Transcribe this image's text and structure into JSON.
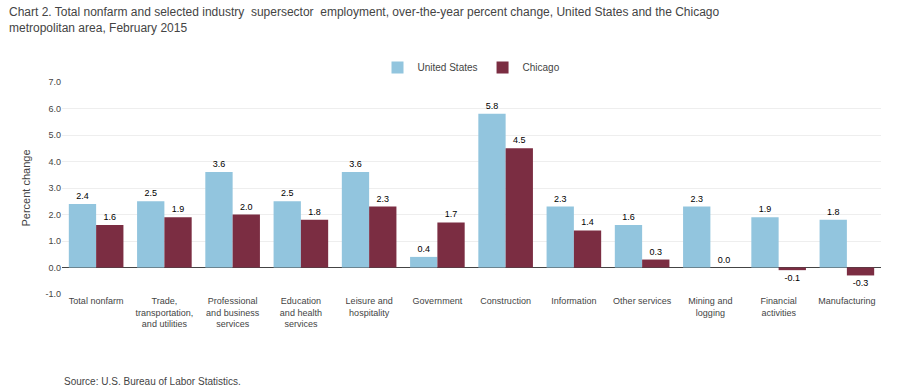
{
  "chart_data": {
    "type": "bar",
    "title": "Chart 2. Total nonfarm and selected industry  supersector  employment, over-the-year percent change, United States and the Chicago\nmetropolitan area, February 2015",
    "ylabel": "Percent change",
    "source": "Source: U.S. Bureau of Labor Statistics.",
    "categories": [
      "Total nonfarm",
      "Trade,\ntransportation,\nand utilities",
      "Professional\nand business\nservices",
      "Education\nand health\nservices",
      "Leisure and\nhospitality",
      "Government",
      "Construction",
      "Information",
      "Other services",
      "Mining and\nlogging",
      "Financial\nactivities",
      "Manufacturing"
    ],
    "series": [
      {
        "name": "United States",
        "color": "#92c5de",
        "values": [
          2.4,
          2.5,
          3.6,
          2.5,
          3.6,
          0.4,
          5.8,
          2.3,
          1.6,
          2.3,
          1.9,
          1.8
        ],
        "value_labels": [
          "2.4",
          "2.5",
          "3.6",
          "2.5",
          "3.6",
          "0.4",
          "5.8",
          "2.3",
          "1.6",
          "2.3",
          "1.9",
          "1.8"
        ]
      },
      {
        "name": "Chicago",
        "color": "#7b2d42",
        "values": [
          1.6,
          1.9,
          2.0,
          1.8,
          2.3,
          1.7,
          4.5,
          1.4,
          0.3,
          0.0,
          -0.1,
          -0.3
        ],
        "value_labels": [
          "1.6",
          "1.9",
          "2.0",
          "1.8",
          "2.3",
          "1.7",
          "4.5",
          "1.4",
          "0.3",
          "0.0",
          "-0.1",
          "-0.3"
        ]
      }
    ],
    "ylim": [
      -1.0,
      7.0
    ],
    "yticks": [
      {
        "value": -1.0,
        "label": "-1.0"
      },
      {
        "value": 0.0,
        "label": "0.0"
      },
      {
        "value": 1.0,
        "label": "1.0"
      },
      {
        "value": 2.0,
        "label": "2.0"
      },
      {
        "value": 3.0,
        "label": "3.0"
      },
      {
        "value": 4.0,
        "label": "4.0"
      },
      {
        "value": 5.0,
        "label": "5.0"
      },
      {
        "value": 6.0,
        "label": "6.0"
      },
      {
        "value": 7.0,
        "label": "7.0"
      }
    ],
    "grid": true,
    "legend": "top",
    "data_labels": true
  }
}
